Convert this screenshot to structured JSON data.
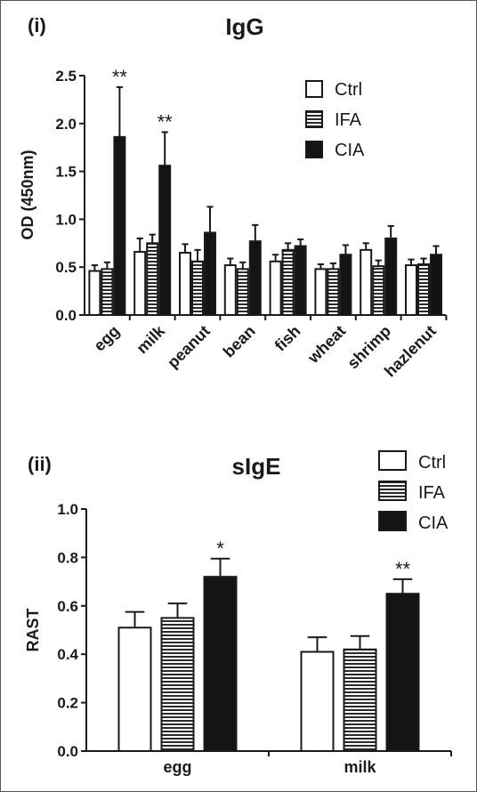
{
  "chart_data": [
    {
      "type": "bar",
      "panel": "(i)",
      "title": "IgG",
      "xlabel": "",
      "ylabel": "OD (450nm)",
      "ylim": [
        0,
        2.5
      ],
      "yticks": [
        "0.0",
        "0.5",
        "1.0",
        "1.5",
        "2.0",
        "2.5"
      ],
      "categories": [
        "egg",
        "milk",
        "peanut",
        "bean",
        "fish",
        "wheat",
        "shrimp",
        "hazlenut"
      ],
      "series": [
        {
          "name": "Ctrl",
          "fill": "white",
          "values": [
            0.46,
            0.66,
            0.65,
            0.52,
            0.56,
            0.48,
            0.68,
            0.52
          ],
          "errors": [
            0.06,
            0.14,
            0.09,
            0.07,
            0.07,
            0.05,
            0.07,
            0.06
          ]
        },
        {
          "name": "IFA",
          "fill": "hatch",
          "values": [
            0.48,
            0.75,
            0.56,
            0.48,
            0.68,
            0.48,
            0.51,
            0.53
          ],
          "errors": [
            0.07,
            0.09,
            0.12,
            0.07,
            0.07,
            0.06,
            0.06,
            0.06
          ]
        },
        {
          "name": "CIA",
          "fill": "black",
          "values": [
            1.86,
            1.56,
            0.86,
            0.77,
            0.72,
            0.63,
            0.8,
            0.63
          ],
          "errors": [
            0.52,
            0.35,
            0.27,
            0.17,
            0.07,
            0.1,
            0.13,
            0.09
          ]
        }
      ],
      "significance": [
        {
          "category": "egg",
          "label": "**"
        },
        {
          "category": "milk",
          "label": "**"
        }
      ],
      "legend": "top-right",
      "grid": false
    },
    {
      "type": "bar",
      "panel": "(ii)",
      "title": "sIgE",
      "xlabel": "",
      "ylabel": "RAST",
      "ylim": [
        0,
        1.0
      ],
      "yticks": [
        "0.0",
        "0.2",
        "0.4",
        "0.6",
        "0.8",
        "1.0"
      ],
      "categories": [
        "egg",
        "milk"
      ],
      "series": [
        {
          "name": "Ctrl",
          "fill": "white",
          "values": [
            0.51,
            0.41
          ],
          "errors": [
            0.065,
            0.06
          ]
        },
        {
          "name": "IFA",
          "fill": "hatch",
          "values": [
            0.55,
            0.42
          ],
          "errors": [
            0.06,
            0.055
          ]
        },
        {
          "name": "CIA",
          "fill": "black",
          "values": [
            0.72,
            0.65
          ],
          "errors": [
            0.075,
            0.06
          ]
        }
      ],
      "significance": [
        {
          "category": "egg",
          "label": "*"
        },
        {
          "category": "milk",
          "label": "**"
        }
      ],
      "legend": "top-right",
      "grid": false
    }
  ],
  "colors": {
    "ink": "#1a1a1a",
    "bar_black": "#141414",
    "hatch": "#2a2a2a"
  }
}
